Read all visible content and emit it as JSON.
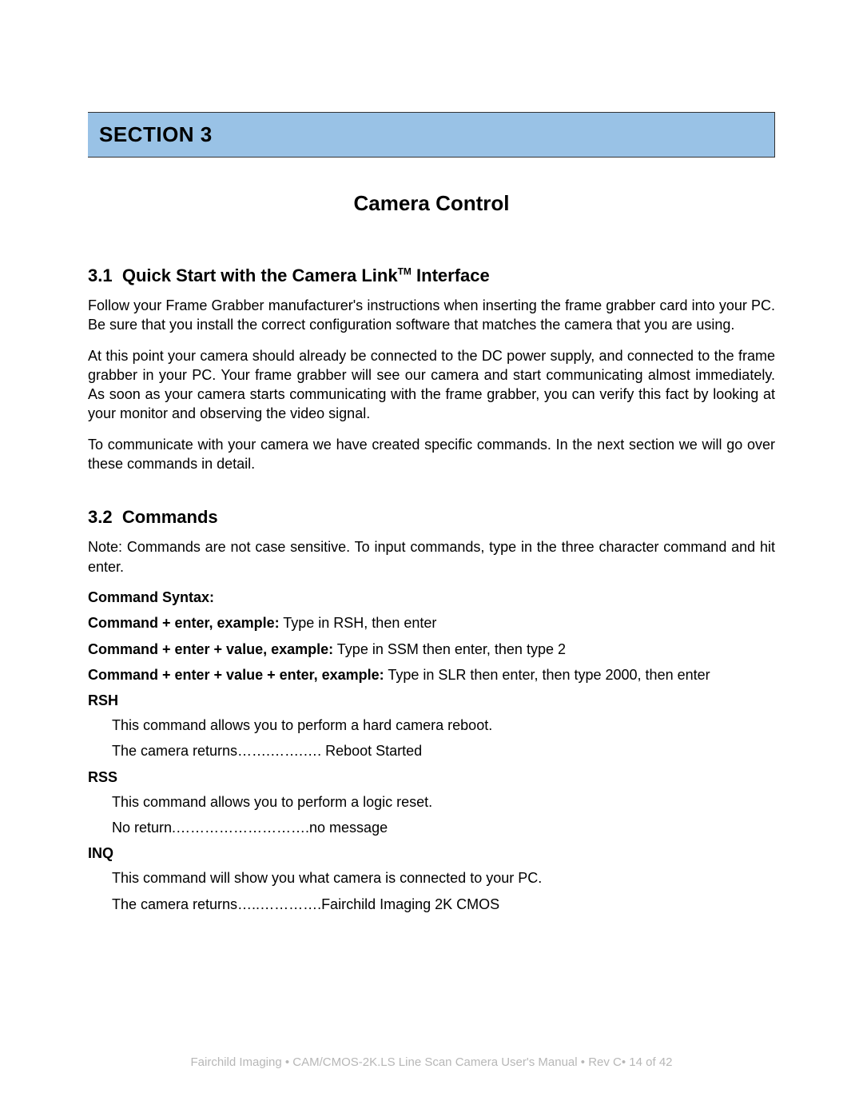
{
  "section_banner": {
    "label": "SECTION 3",
    "bg_color": "#99c2e6",
    "border_color": "#333333"
  },
  "chapter_title": "Camera Control",
  "sub1": {
    "number": "3.1",
    "title_pre": "Quick Start with the Camera Link",
    "title_sup": "TM",
    "title_post": " Interface",
    "p1": "Follow your Frame Grabber manufacturer's instructions when inserting the frame grabber card into your PC.  Be sure that you install the correct configuration software that matches the camera that you are using.",
    "p2": "At this point your camera should already be connected to the DC power supply, and connected to the frame grabber in your PC.  Your frame grabber will see our camera and start communicating almost immediately.  As soon as your camera starts communicating with the frame grabber, you can verify this fact by looking at your monitor and observing the video signal.",
    "p3": "To communicate with your camera we have created specific commands.  In the next section we will go over these commands in detail."
  },
  "sub2": {
    "number": "3.2",
    "title": "Commands",
    "note": "Note:  Commands are not case sensitive.  To input commands, type in the three character command and hit enter.",
    "syntax_label": "Command Syntax:",
    "ex1_label": "Command + enter, example:",
    "ex1_text": "  Type in RSH, then enter",
    "ex2_label": "Command + enter + value, example:",
    "ex2_text": "  Type in SSM then enter, then type 2",
    "ex3_label": "Command + enter + value + enter, example:",
    "ex3_text": "  Type in SLR then enter, then type 2000, then enter",
    "commands": [
      {
        "name": "RSH",
        "desc": "This command allows you to perform a hard camera reboot.",
        "ret": "The camera returns…….…….…. Reboot Started"
      },
      {
        "name": "RSS",
        "desc": "This command allows you to perform a logic reset.",
        "ret": "No return.……………………….no message"
      },
      {
        "name": "INQ",
        "desc": "This command will show you what camera is connected to your PC.",
        "ret": "The camera returns…..………….Fairchild Imaging 2K CMOS"
      }
    ]
  },
  "footer": {
    "text": "Fairchild Imaging • CAM/CMOS-2K.LS Line Scan Camera User's Manual • Rev C• 14 of 42",
    "color": "#b7b7b7"
  }
}
